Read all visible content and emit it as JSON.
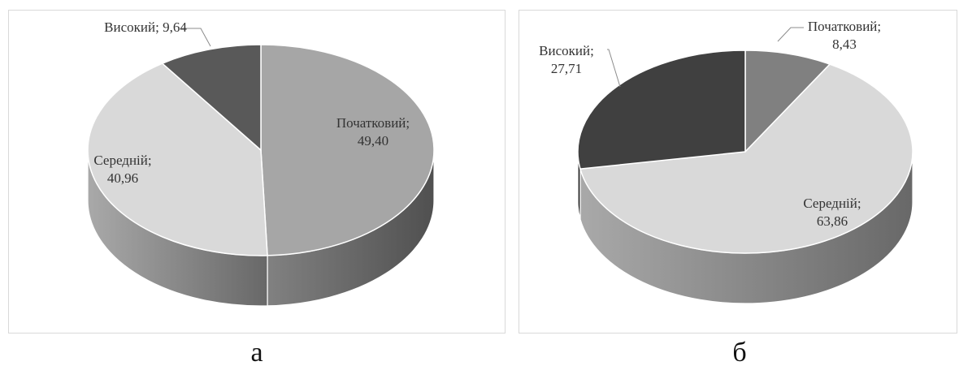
{
  "chart_data": [
    {
      "type": "pie",
      "panel_label": "а",
      "style": "3d",
      "slices": [
        {
          "label": "Початковий",
          "value": 49.4,
          "value_text": "49,40",
          "color": "#a6a6a6"
        },
        {
          "label": "Середній",
          "value": 40.96,
          "value_text": "40,96",
          "color": "#d9d9d9"
        },
        {
          "label": "Високий",
          "value": 9.64,
          "value_text": "9,64",
          "color": "#595959"
        }
      ]
    },
    {
      "type": "pie",
      "panel_label": "б",
      "style": "3d",
      "slices": [
        {
          "label": "Початковий",
          "value": 8.43,
          "value_text": "8,43",
          "color": "#808080"
        },
        {
          "label": "Середній",
          "value": 63.86,
          "value_text": "63,86",
          "color": "#d9d9d9"
        },
        {
          "label": "Високий",
          "value": 27.71,
          "value_text": "27,71",
          "color": "#404040"
        }
      ]
    }
  ]
}
